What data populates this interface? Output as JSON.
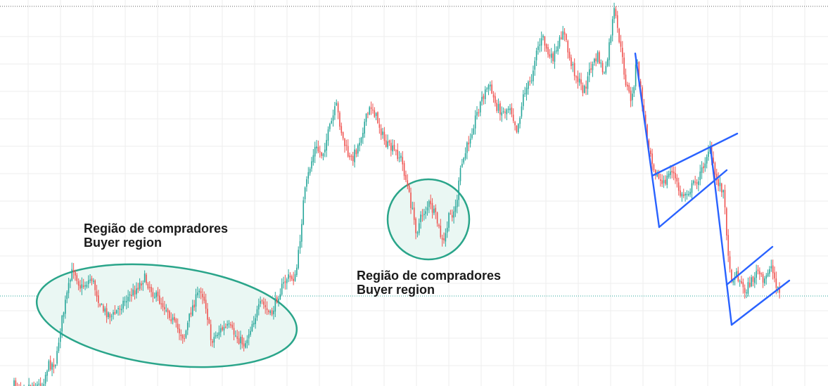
{
  "colors": {
    "background": "#ffffff",
    "grid": "#eeeeee",
    "bull_candle": "#26a69a",
    "bear_candle": "#ef5350",
    "region_stroke": "#2aa58a",
    "region_fill": "#eaf7f3",
    "trendline": "#2962ff",
    "price_line": "#26a69a",
    "top_dotted_line": "#666666"
  },
  "annotations": [
    {
      "line1": "Região de compradores",
      "line2": "Buyer region"
    },
    {
      "line1": "Região de compradores",
      "line2": "Buyer region"
    }
  ],
  "chart_data": {
    "type": "candlestick",
    "title": "",
    "xlabel": "",
    "ylabel": "",
    "ylim": [
      0,
      549
    ],
    "grid": true,
    "y_direction": "down",
    "notes": "Values estimated from the screenshot; no axes or ticks are printed. y values are in screen pixel units (down = lower price).",
    "path_points": [
      [
        18,
        548
      ],
      [
        60,
        548
      ],
      [
        68,
        520
      ],
      [
        80,
        515
      ],
      [
        85,
        470
      ],
      [
        95,
        420
      ],
      [
        104,
        380
      ],
      [
        115,
        410
      ],
      [
        130,
        395
      ],
      [
        145,
        440
      ],
      [
        160,
        450
      ],
      [
        175,
        430
      ],
      [
        190,
        415
      ],
      [
        205,
        395
      ],
      [
        220,
        420
      ],
      [
        238,
        440
      ],
      [
        250,
        465
      ],
      [
        262,
        480
      ],
      [
        272,
        440
      ],
      [
        285,
        410
      ],
      [
        292,
        430
      ],
      [
        300,
        485
      ],
      [
        312,
        470
      ],
      [
        325,
        465
      ],
      [
        337,
        480
      ],
      [
        348,
        490
      ],
      [
        358,
        460
      ],
      [
        372,
        430
      ],
      [
        385,
        450
      ],
      [
        395,
        420
      ],
      [
        408,
        395
      ],
      [
        420,
        395
      ],
      [
        425,
        355
      ],
      [
        432,
        280
      ],
      [
        440,
        240
      ],
      [
        448,
        210
      ],
      [
        458,
        220
      ],
      [
        468,
        185
      ],
      [
        478,
        150
      ],
      [
        488,
        200
      ],
      [
        498,
        230
      ],
      [
        508,
        210
      ],
      [
        518,
        175
      ],
      [
        528,
        150
      ],
      [
        538,
        175
      ],
      [
        548,
        205
      ],
      [
        560,
        215
      ],
      [
        570,
        225
      ],
      [
        578,
        260
      ],
      [
        585,
        295
      ],
      [
        592,
        330
      ],
      [
        600,
        305
      ],
      [
        610,
        290
      ],
      [
        620,
        310
      ],
      [
        630,
        350
      ],
      [
        638,
        310
      ],
      [
        648,
        295
      ],
      [
        655,
        240
      ],
      [
        665,
        205
      ],
      [
        675,
        170
      ],
      [
        685,
        140
      ],
      [
        695,
        120
      ],
      [
        705,
        150
      ],
      [
        715,
        160
      ],
      [
        725,
        150
      ],
      [
        735,
        185
      ],
      [
        745,
        130
      ],
      [
        755,
        115
      ],
      [
        762,
        70
      ],
      [
        772,
        55
      ],
      [
        782,
        85
      ],
      [
        792,
        75
      ],
      [
        800,
        40
      ],
      [
        810,
        85
      ],
      [
        820,
        110
      ],
      [
        830,
        130
      ],
      [
        840,
        95
      ],
      [
        850,
        80
      ],
      [
        860,
        110
      ],
      [
        866,
        65
      ],
      [
        873,
        15
      ],
      [
        880,
        55
      ],
      [
        890,
        120
      ],
      [
        898,
        145
      ],
      [
        905,
        85
      ],
      [
        912,
        140
      ],
      [
        920,
        195
      ],
      [
        930,
        240
      ],
      [
        942,
        265
      ],
      [
        955,
        240
      ],
      [
        968,
        280
      ],
      [
        980,
        270
      ],
      [
        995,
        250
      ],
      [
        1008,
        210
      ],
      [
        1018,
        255
      ],
      [
        1028,
        270
      ],
      [
        1033,
        330
      ],
      [
        1038,
        395
      ],
      [
        1048,
        390
      ],
      [
        1058,
        415
      ],
      [
        1068,
        400
      ],
      [
        1078,
        385
      ],
      [
        1085,
        405
      ],
      [
        1095,
        375
      ],
      [
        1102,
        400
      ],
      [
        1110,
        420
      ]
    ],
    "reference_lines": [
      {
        "style": "dotted",
        "y": 421
      },
      {
        "style": "dotted",
        "y": 9
      }
    ],
    "regions": [
      {
        "shape": "ellipse",
        "center": [
          237,
          449
        ],
        "radii": [
          186,
          70
        ],
        "rotation": 7
      },
      {
        "shape": "circle",
        "center": [
          609,
          312
        ],
        "radii": [
          58,
          57
        ],
        "rotation": 0
      }
    ],
    "trendlines": [
      [
        [
          903,
          76
        ],
        [
          937,
          323
        ]
      ],
      [
        [
          937,
          323
        ],
        [
          1033,
          242
        ]
      ],
      [
        [
          927,
          250
        ],
        [
          1048,
          190
        ]
      ],
      [
        [
          1010,
          210
        ],
        [
          1040,
          462
        ]
      ],
      [
        [
          1040,
          462
        ],
        [
          1122,
          399
        ]
      ],
      [
        [
          1033,
          405
        ],
        [
          1098,
          351
        ]
      ]
    ]
  }
}
